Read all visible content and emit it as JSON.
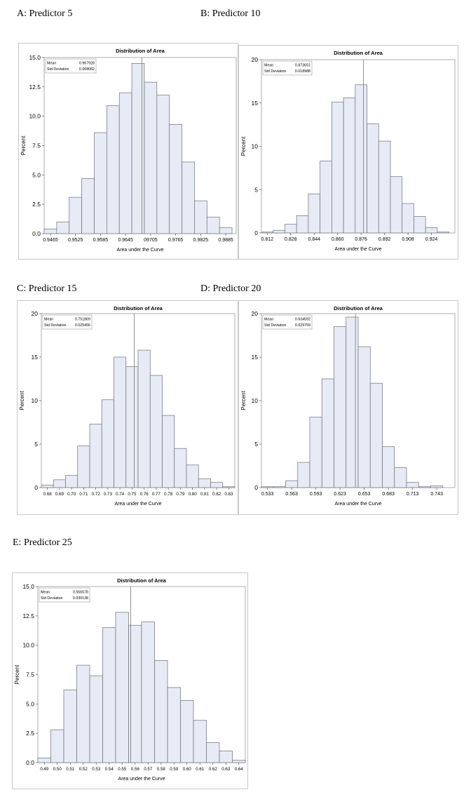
{
  "chart_data": [
    {
      "id": "A",
      "type": "bar",
      "panel_label": "A: Predictor 5",
      "title": "Distribution of Area",
      "xlabel": "Area under the Curve",
      "ylabel": "Percent",
      "ylim": [
        0,
        15
      ],
      "y_ticks": [
        "0.0",
        "2.5",
        "5.0",
        "7.5",
        "10.0",
        "12.5",
        "15.0"
      ],
      "x_ticks": [
        "0.9465",
        "0.9525",
        "0.9585",
        "0.9645",
        "09705",
        "0.9765",
        "0.9825",
        "0.9885"
      ],
      "xlim": [
        0.9445,
        0.9905
      ],
      "bin_start": 0.9445,
      "bin_width": 0.003,
      "values": [
        0.4,
        1.0,
        3.1,
        4.7,
        8.6,
        10.9,
        12.0,
        14.5,
        12.9,
        11.8,
        9.3,
        6.1,
        2.8,
        1.4,
        0.5
      ],
      "mean_line": 0.967928,
      "stats": {
        "mean_label": "Mean",
        "mean_value": "0.967928",
        "std_label": "Std Deviation",
        "std_value": "0.008082"
      }
    },
    {
      "id": "B",
      "type": "bar",
      "panel_label": "B: Predictor 10",
      "title": "Distribution of Area",
      "xlabel": "Area under the Curve",
      "ylabel": "Percent",
      "ylim": [
        0,
        20
      ],
      "y_ticks": [
        "0",
        "5",
        "10",
        "15",
        "20"
      ],
      "x_ticks": [
        "0.812",
        "0.828",
        "0.844",
        "0.860",
        "0.876",
        "0.892",
        "0.908",
        "0.924"
      ],
      "xlim": [
        0.804,
        0.936
      ],
      "bin_start": 0.804,
      "bin_width": 0.008,
      "values": [
        0.1,
        0.3,
        1.0,
        2.0,
        4.5,
        8.3,
        15.1,
        15.6,
        17.1,
        12.6,
        10.6,
        6.5,
        3.4,
        1.9,
        0.6,
        0.1
      ],
      "mean_line": 0.873651,
      "stats": {
        "mean_label": "Mean",
        "mean_value": "0.873651",
        "std_label": "Std Deviation",
        "std_value": "0.018988"
      }
    },
    {
      "id": "C",
      "type": "bar",
      "panel_label": "C: Predictor 15",
      "title": "Distribution of Area",
      "xlabel": "Area under the Curve",
      "ylabel": "Percent",
      "ylim": [
        0,
        20
      ],
      "y_ticks": [
        "0",
        "5",
        "10",
        "15",
        "20"
      ],
      "x_ticks": [
        "0.68",
        "0.69",
        "0.70",
        "0.71",
        "0.72",
        "0.73",
        "0.74",
        "0.75",
        "0.76",
        "0.77",
        "0.78",
        "0.79",
        "0.80",
        "0.81",
        "0.82",
        "0.83"
      ],
      "xlim": [
        0.675,
        0.835
      ],
      "bin_start": 0.675,
      "bin_width": 0.01,
      "values": [
        0.3,
        0.9,
        1.4,
        4.8,
        7.3,
        10.1,
        15.0,
        13.9,
        15.8,
        12.9,
        8.3,
        4.5,
        2.6,
        1.0,
        0.6,
        0.1
      ],
      "mean_line": 0.751869,
      "stats": {
        "mean_label": "Mean",
        "mean_value": "0.751869",
        "std_label": "Std Deviation",
        "std_value": "0.025456"
      }
    },
    {
      "id": "D",
      "type": "bar",
      "panel_label": "D:  Predictor 20",
      "title": "Distribution of Area",
      "xlabel": "Area under the Curve",
      "ylabel": "Percent",
      "ylim": [
        0,
        20
      ],
      "y_ticks": [
        "0",
        "5",
        "10",
        "15",
        "20"
      ],
      "x_ticks": [
        "0.533",
        "0.563",
        "0.593",
        "0.623",
        "0.653",
        "0.683",
        "0.713",
        "0.743"
      ],
      "xlim": [
        0.518,
        0.758
      ],
      "bin_start": 0.518,
      "bin_width": 0.015,
      "values": [
        0.1,
        0.1,
        0.8,
        2.9,
        8.1,
        12.5,
        18.5,
        19.6,
        16.2,
        12.0,
        4.7,
        2.3,
        0.6,
        0.1,
        0.2
      ],
      "mean_line": 0.634592,
      "stats": {
        "mean_label": "Mean",
        "mean_value": "0.634592",
        "std_label": "Std Deviation",
        "std_value": "0.029759"
      }
    },
    {
      "id": "E",
      "type": "bar",
      "panel_label": "E: Predictor 25",
      "title": "Distribution of Area",
      "xlabel": "Area under the Curve",
      "ylabel": "Percent",
      "ylim": [
        0,
        15
      ],
      "y_ticks": [
        "0.0",
        "2.5",
        "5.0",
        "7.5",
        "10.0",
        "12.5",
        "15.0"
      ],
      "x_ticks": [
        "0.49",
        "0.50",
        "0.51",
        "0.52",
        "0.53",
        "0.54",
        "0.55",
        "0.56",
        "0.57",
        "0.58",
        "0.59",
        "0.60",
        "0.61",
        "0.62",
        "0.63",
        "0.64"
      ],
      "xlim": [
        0.485,
        0.645
      ],
      "bin_start": 0.485,
      "bin_width": 0.01,
      "values": [
        0.4,
        2.8,
        6.2,
        8.3,
        7.4,
        11.5,
        12.8,
        11.7,
        12.0,
        8.7,
        6.4,
        5.3,
        3.6,
        1.7,
        1.0,
        0.2
      ],
      "mean_line": 0.556578,
      "stats": {
        "mean_label": "Mean",
        "mean_value": "0.556578",
        "std_label": "Std Deviation",
        "std_value": "0.030138"
      }
    }
  ]
}
